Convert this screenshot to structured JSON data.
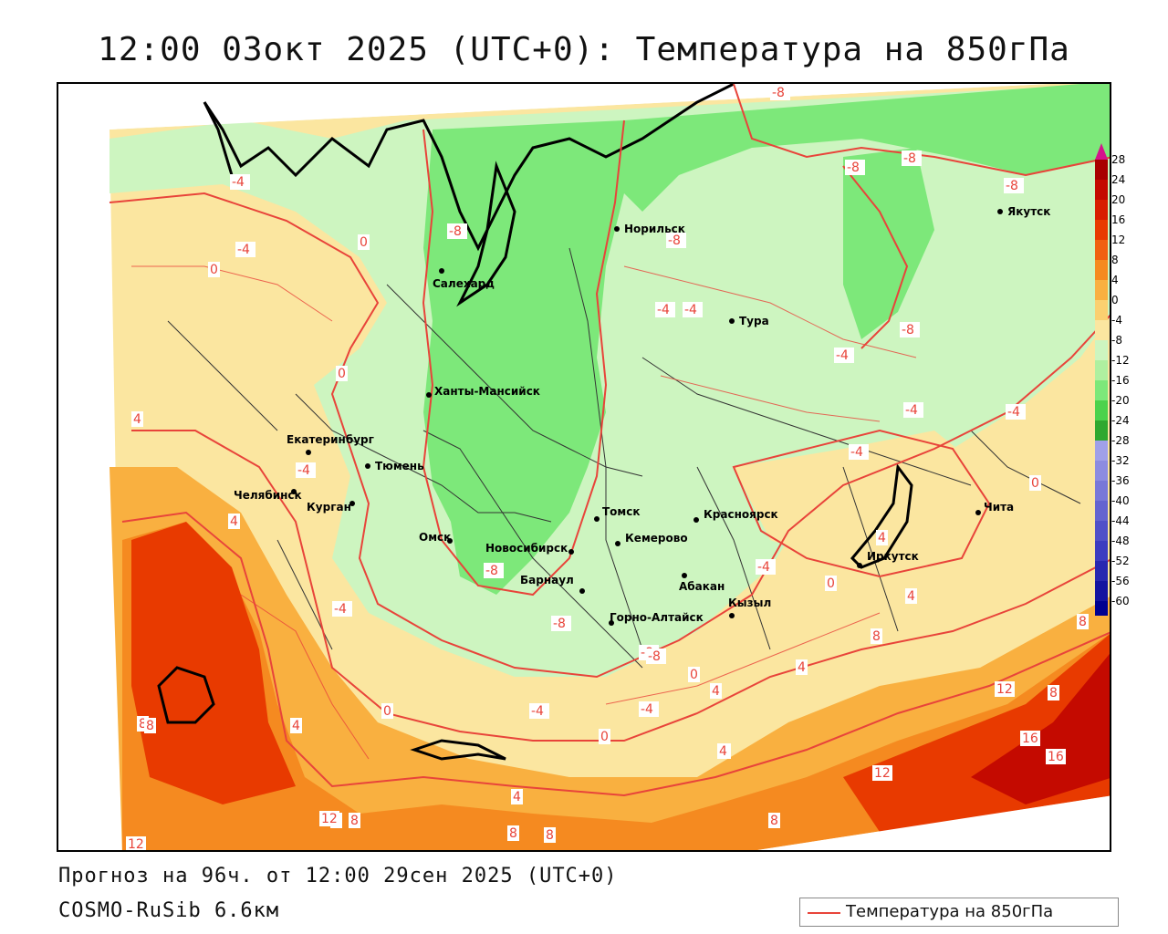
{
  "title": "12:00 03окт 2025 (UTC+0): Температура на 850гПа",
  "footer": {
    "forecast": "Прогноз на 96ч. от 12:00 29сен 2025 (UTC+0)",
    "model": "COSMO-RuSib 6.6км"
  },
  "legend": {
    "label": "Температура на 850гПа",
    "line_color": "#e8443a"
  },
  "colorbar": {
    "ticks": [
      "28",
      "24",
      "20",
      "16",
      "12",
      "8",
      "4",
      "0",
      "-4",
      "-8",
      "-12",
      "-16",
      "-20",
      "-24",
      "-28",
      "-32",
      "-36",
      "-40",
      "-44",
      "-48",
      "-52",
      "-56",
      "-60"
    ],
    "colors": [
      "#a80000",
      "#c40a00",
      "#d81e00",
      "#e83a00",
      "#f06010",
      "#f58a20",
      "#f9b040",
      "#fbd070",
      "#fbe6a0",
      "#cdf5c0",
      "#aff0a0",
      "#7de87a",
      "#4cd24c",
      "#2fa82f",
      "#a0a0e8",
      "#8c8ce0",
      "#7878d8",
      "#6464d0",
      "#5050c8",
      "#3c3cc0",
      "#2828b0",
      "#1414a0",
      "#000090"
    ],
    "top_arrow_color": "#d4148c"
  },
  "cities": [
    {
      "name": "Норильск"
    },
    {
      "name": "Якутск"
    },
    {
      "name": "Салехард"
    },
    {
      "name": "Тура"
    },
    {
      "name": "Ханты-Мансийск"
    },
    {
      "name": "Екатеринбург"
    },
    {
      "name": "Тюмень"
    },
    {
      "name": "Челябинск"
    },
    {
      "name": "Курган"
    },
    {
      "name": "Омск"
    },
    {
      "name": "Новосибирск"
    },
    {
      "name": "Томск"
    },
    {
      "name": "Кемерово"
    },
    {
      "name": "Красноярск"
    },
    {
      "name": "Барнаул"
    },
    {
      "name": "Абакан"
    },
    {
      "name": "Горно-Алтайск"
    },
    {
      "name": "Кызыл"
    },
    {
      "name": "Иркутск"
    },
    {
      "name": "Чита"
    }
  ],
  "contour_labels": [
    "-8",
    "-8",
    "-8",
    "-8",
    "-8",
    "-4",
    "-4",
    "0",
    "0",
    "-8",
    "-4",
    "-4",
    "-4",
    "0",
    "4",
    "4",
    "-4",
    "-4",
    "-8",
    "-8",
    "-8",
    "-8",
    "-4",
    "-4",
    "0",
    "4",
    "8",
    "-4",
    "0",
    "4",
    "8",
    "8",
    "4",
    "0",
    "-4",
    "0",
    "4",
    "8",
    "12",
    "8",
    "12",
    "16",
    "16",
    "4",
    "8",
    "12",
    "8",
    "8",
    "4",
    "8",
    "-8",
    "-4",
    "-4",
    "0",
    "4",
    "4",
    "12",
    "8"
  ]
}
